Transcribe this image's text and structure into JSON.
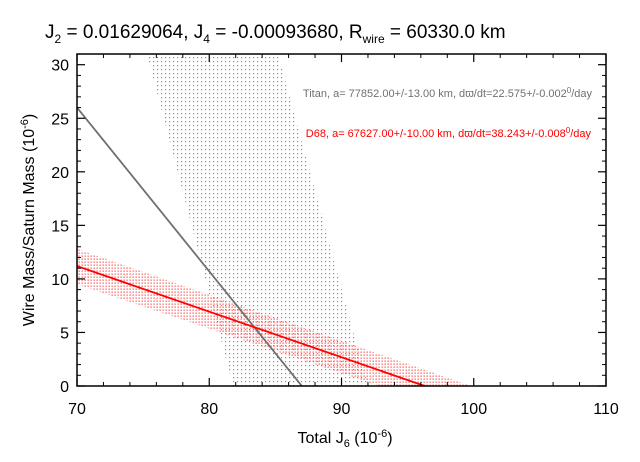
{
  "chart_data": {
    "type": "line",
    "title": {
      "j2_label": "J",
      "j2_sub": "2",
      "j2_value": " =  0.01629064, ",
      "j4_label": "J",
      "j4_sub": "4",
      "j4_value": " = -0.00093680, ",
      "r_label": "R",
      "r_sub": "wire",
      "r_value": "  = 60330.0 km"
    },
    "xlabel": {
      "main": "Total J",
      "sub": "6",
      "unit_pre": " (10",
      "unit_exp": "-6",
      "unit_post": ")"
    },
    "ylabel": {
      "main": "Wire Mass/Saturn Mass (10",
      "unit_exp": "-6",
      "unit_post": ")"
    },
    "xlim": [
      70,
      110
    ],
    "ylim": [
      0,
      31
    ],
    "x_ticks": [
      70,
      80,
      90,
      100,
      110
    ],
    "y_ticks": [
      0,
      5,
      10,
      15,
      20,
      25,
      30
    ],
    "x_tick_labels": [
      "70",
      "80",
      "90",
      "100",
      "110"
    ],
    "y_tick_labels": [
      "0",
      "5",
      "10",
      "15",
      "20",
      "25",
      "30"
    ],
    "grid": false,
    "series": [
      {
        "annotation_prefix": "Titan, a= 77852.00+/-13.00 km, d",
        "annotation_symbol": "ϖ",
        "annotation_mid": "/dt=22.575+/-0.002",
        "annotation_exp": "0",
        "annotation_post": "/day",
        "color": "#707070",
        "band_color": "#9a9a9a",
        "line": {
          "x": [
            70,
            87.0
          ],
          "y": [
            26.0,
            0
          ]
        },
        "band_upper": {
          "x": [
            70,
            85.2,
            92.0
          ],
          "y": [
            31,
            31,
            0
          ]
        },
        "band_lower": {
          "x": [
            75.3,
            81.8
          ],
          "y": [
            31,
            0
          ]
        }
      },
      {
        "annotation_prefix": "D68, a= 67627.00+/-10.00 km, d",
        "annotation_symbol": "ϖ",
        "annotation_mid": "/dt=38.243+/-0.008",
        "annotation_exp": "0",
        "annotation_post": "/day",
        "color": "#ff0000",
        "band_color": "#ff6a6a",
        "line": {
          "x": [
            70,
            96.3
          ],
          "y": [
            11.2,
            0
          ]
        },
        "band_upper": {
          "x": [
            70,
            99.8
          ],
          "y": [
            12.8,
            0
          ]
        },
        "band_lower": {
          "x": [
            70,
            92.9
          ],
          "y": [
            9.5,
            0
          ]
        }
      }
    ]
  }
}
